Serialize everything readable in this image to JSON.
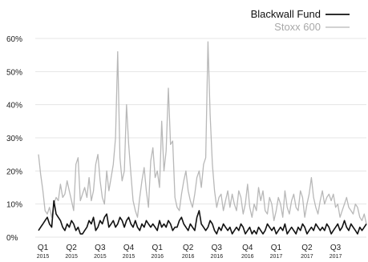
{
  "chart_data": {
    "type": "line",
    "title": "",
    "xlabel": "",
    "ylabel": "",
    "ylim": [
      0,
      60
    ],
    "yticks": [
      0,
      10,
      20,
      30,
      40,
      50,
      60
    ],
    "ytick_labels": [
      "0%",
      "10%",
      "20%",
      "30%",
      "40%",
      "50%",
      "60%"
    ],
    "grid": "horizontal",
    "legend": "top-right",
    "x_count": 150,
    "x_ticks": [
      {
        "index": 2,
        "quarter": "Q1",
        "year": "2015"
      },
      {
        "index": 15,
        "quarter": "Q2",
        "year": "2015"
      },
      {
        "index": 28,
        "quarter": "Q3",
        "year": "2015"
      },
      {
        "index": 41,
        "quarter": "Q4",
        "year": "2015"
      },
      {
        "index": 54,
        "quarter": "Q1",
        "year": "2016"
      },
      {
        "index": 68,
        "quarter": "Q2",
        "year": "2016"
      },
      {
        "index": 81,
        "quarter": "Q3",
        "year": "2016"
      },
      {
        "index": 95,
        "quarter": "Q4",
        "year": "2016"
      },
      {
        "index": 108,
        "quarter": "Q1",
        "year": "2017"
      },
      {
        "index": 122,
        "quarter": "Q2",
        "year": "2017"
      },
      {
        "index": 135,
        "quarter": "Q3",
        "year": "2017"
      }
    ],
    "series": [
      {
        "name": "Stoxx 600",
        "color": "#b8b8b8",
        "values": [
          25,
          19,
          14,
          8,
          7,
          9,
          6,
          10,
          12,
          11,
          16,
          12,
          13,
          17,
          14,
          11,
          8,
          22,
          24,
          11,
          13,
          15,
          12,
          18,
          11,
          14,
          22,
          25,
          17,
          12,
          10,
          20,
          14,
          18,
          22,
          30,
          56,
          24,
          17,
          20,
          40,
          28,
          19,
          11,
          8,
          6,
          12,
          17,
          21,
          14,
          9,
          23,
          27,
          18,
          20,
          15,
          35,
          20,
          26,
          45,
          28,
          29,
          12,
          9,
          8,
          13,
          17,
          20,
          14,
          11,
          9,
          13,
          18,
          20,
          15,
          22,
          24,
          59,
          37,
          22,
          14,
          9,
          12,
          13,
          8,
          11,
          14,
          9,
          13,
          10,
          8,
          14,
          12,
          7,
          10,
          16,
          9,
          6,
          10,
          8,
          15,
          11,
          14,
          8,
          7,
          12,
          10,
          5,
          8,
          12,
          10,
          6,
          14,
          9,
          7,
          11,
          13,
          9,
          8,
          14,
          12,
          6,
          10,
          13,
          18,
          12,
          9,
          7,
          11,
          14,
          10,
          12,
          13,
          11,
          13,
          9,
          10,
          6,
          8,
          10,
          12,
          9,
          8,
          7,
          10,
          9,
          6,
          5,
          7,
          4
        ]
      },
      {
        "name": "Blackwall Fund",
        "color": "#111111",
        "values": [
          2,
          3,
          4,
          5,
          6,
          4,
          3,
          11,
          7,
          6,
          5,
          3,
          2,
          4,
          3,
          5,
          4,
          2,
          3,
          1,
          1,
          2,
          3,
          5,
          4,
          6,
          2,
          3,
          5,
          4,
          6,
          7,
          3,
          4,
          5,
          3,
          4,
          6,
          5,
          3,
          5,
          6,
          4,
          3,
          5,
          3,
          2,
          4,
          3,
          5,
          4,
          3,
          4,
          3,
          2,
          5,
          3,
          4,
          3,
          5,
          4,
          2,
          3,
          3,
          5,
          6,
          4,
          3,
          2,
          4,
          3,
          2,
          6,
          8,
          4,
          3,
          2,
          3,
          5,
          4,
          2,
          1,
          3,
          2,
          4,
          3,
          2,
          3,
          1,
          2,
          3,
          2,
          4,
          3,
          1,
          2,
          3,
          1,
          2,
          1,
          3,
          2,
          1,
          2,
          4,
          3,
          2,
          3,
          1,
          2,
          3,
          2,
          4,
          1,
          2,
          3,
          2,
          1,
          3,
          2,
          4,
          3,
          1,
          2,
          3,
          2,
          4,
          3,
          2,
          3,
          2,
          4,
          3,
          1,
          2,
          3,
          4,
          2,
          3,
          5,
          3,
          2,
          4,
          3,
          2,
          1,
          3,
          2,
          3,
          4
        ]
      }
    ]
  }
}
